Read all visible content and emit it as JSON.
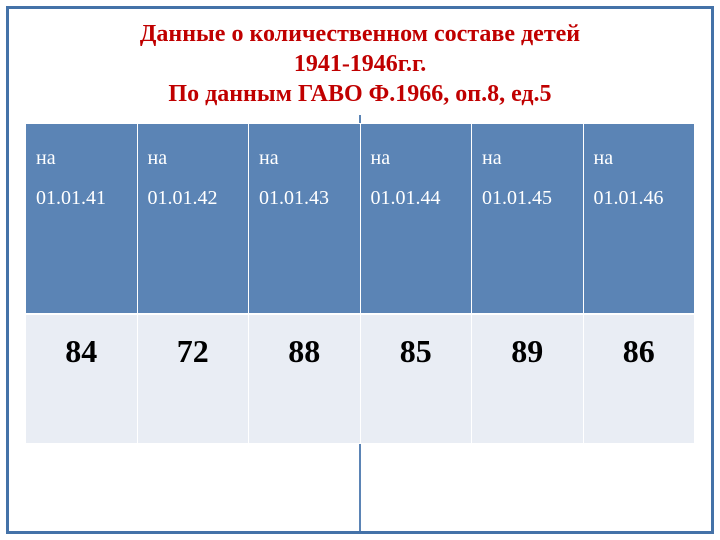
{
  "title": {
    "line1": "Данные о количественном составе детей",
    "line2": "1941-1946г.г.",
    "line3": "По данным ГАВО Ф.1966, оп.8, ед.5"
  },
  "table": {
    "type": "table",
    "header_prefix": "на",
    "columns": [
      {
        "date": "01.01.41"
      },
      {
        "date": "01.01.42"
      },
      {
        "date": "01.01.43"
      },
      {
        "date": "01.01.44"
      },
      {
        "date": "01.01.45"
      },
      {
        "date": "01.01.46"
      }
    ],
    "rows": [
      [
        84,
        72,
        88,
        85,
        89,
        86
      ]
    ],
    "header_bg": "#5b84b5",
    "header_text_color": "#ffffff",
    "cell_bg": "#e9edf4",
    "cell_text_color": "#000000",
    "border_color": "#ffffff",
    "header_fontsize": 20,
    "cell_fontsize": 32,
    "title_color": "#c00000",
    "frame_color": "#4472a8"
  }
}
